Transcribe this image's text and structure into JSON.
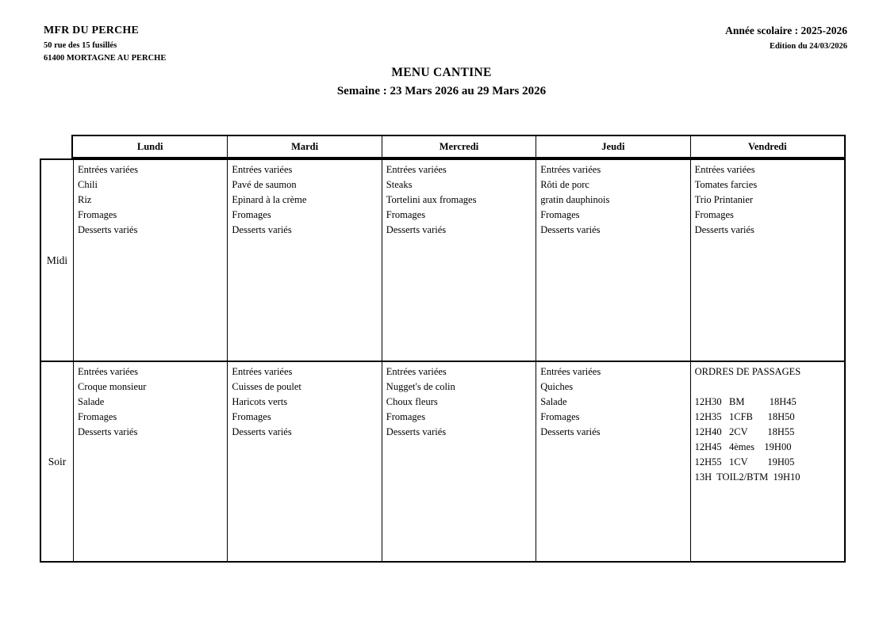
{
  "header": {
    "org_name": "MFR DU PERCHE",
    "address_line1": "50 rue des 15 fusillés",
    "address_line2": "61400 MORTAGNE AU PERCHE",
    "school_year": "Année scolaire : 2025-2026",
    "edition": "Edition du 24/03/2026"
  },
  "title": {
    "main": "MENU CANTINE",
    "week": "Semaine : 23 Mars 2026 au 29 Mars 2026"
  },
  "table": {
    "day_headers": [
      "Lundi",
      "Mardi",
      "Mercredi",
      "Jeudi",
      "Vendredi"
    ],
    "rows": [
      {
        "label": "Midi",
        "cells": [
          [
            "Entrées variées",
            "Chili",
            "Riz",
            "Fromages",
            "Desserts variés"
          ],
          [
            "Entrées variées",
            "Pavé de saumon",
            "Epinard à la crème",
            "Fromages",
            "Desserts variés"
          ],
          [
            "Entrées variées",
            "Steaks",
            "Tortelini aux fromages",
            "Fromages",
            "Desserts variés"
          ],
          [
            "Entrées variées",
            "Rôti de porc",
            "gratin dauphinois",
            "Fromages",
            "Desserts variés"
          ],
          [
            "Entrées variées",
            "Tomates farcies",
            "Trio Printanier",
            "Fromages",
            "Desserts variés"
          ]
        ]
      },
      {
        "label": "Soir",
        "cells": [
          [
            "Entrées variées",
            "Croque monsieur",
            "Salade",
            "Fromages",
            "Desserts variés"
          ],
          [
            "Entrées variées",
            "Cuisses de poulet",
            "Haricots verts",
            "Fromages",
            "Desserts variés"
          ],
          [
            "Entrées variées",
            "Nugget's de colin",
            "Choux fleurs",
            "Fromages",
            "Desserts variés"
          ],
          [
            "Entrées variées",
            "Quiches",
            "Salade",
            "Fromages",
            "Desserts variés"
          ]
        ]
      }
    ],
    "passages": {
      "title": "ORDRES DE PASSAGES",
      "lines": [
        "12H30   BM          18H45",
        "12H35   1CFB      18H50",
        "12H40   2CV        18H55",
        "12H45   4èmes    19H00",
        "12H55   1CV        19H05",
        "13H  TOIL2/BTM  19H10"
      ]
    }
  }
}
